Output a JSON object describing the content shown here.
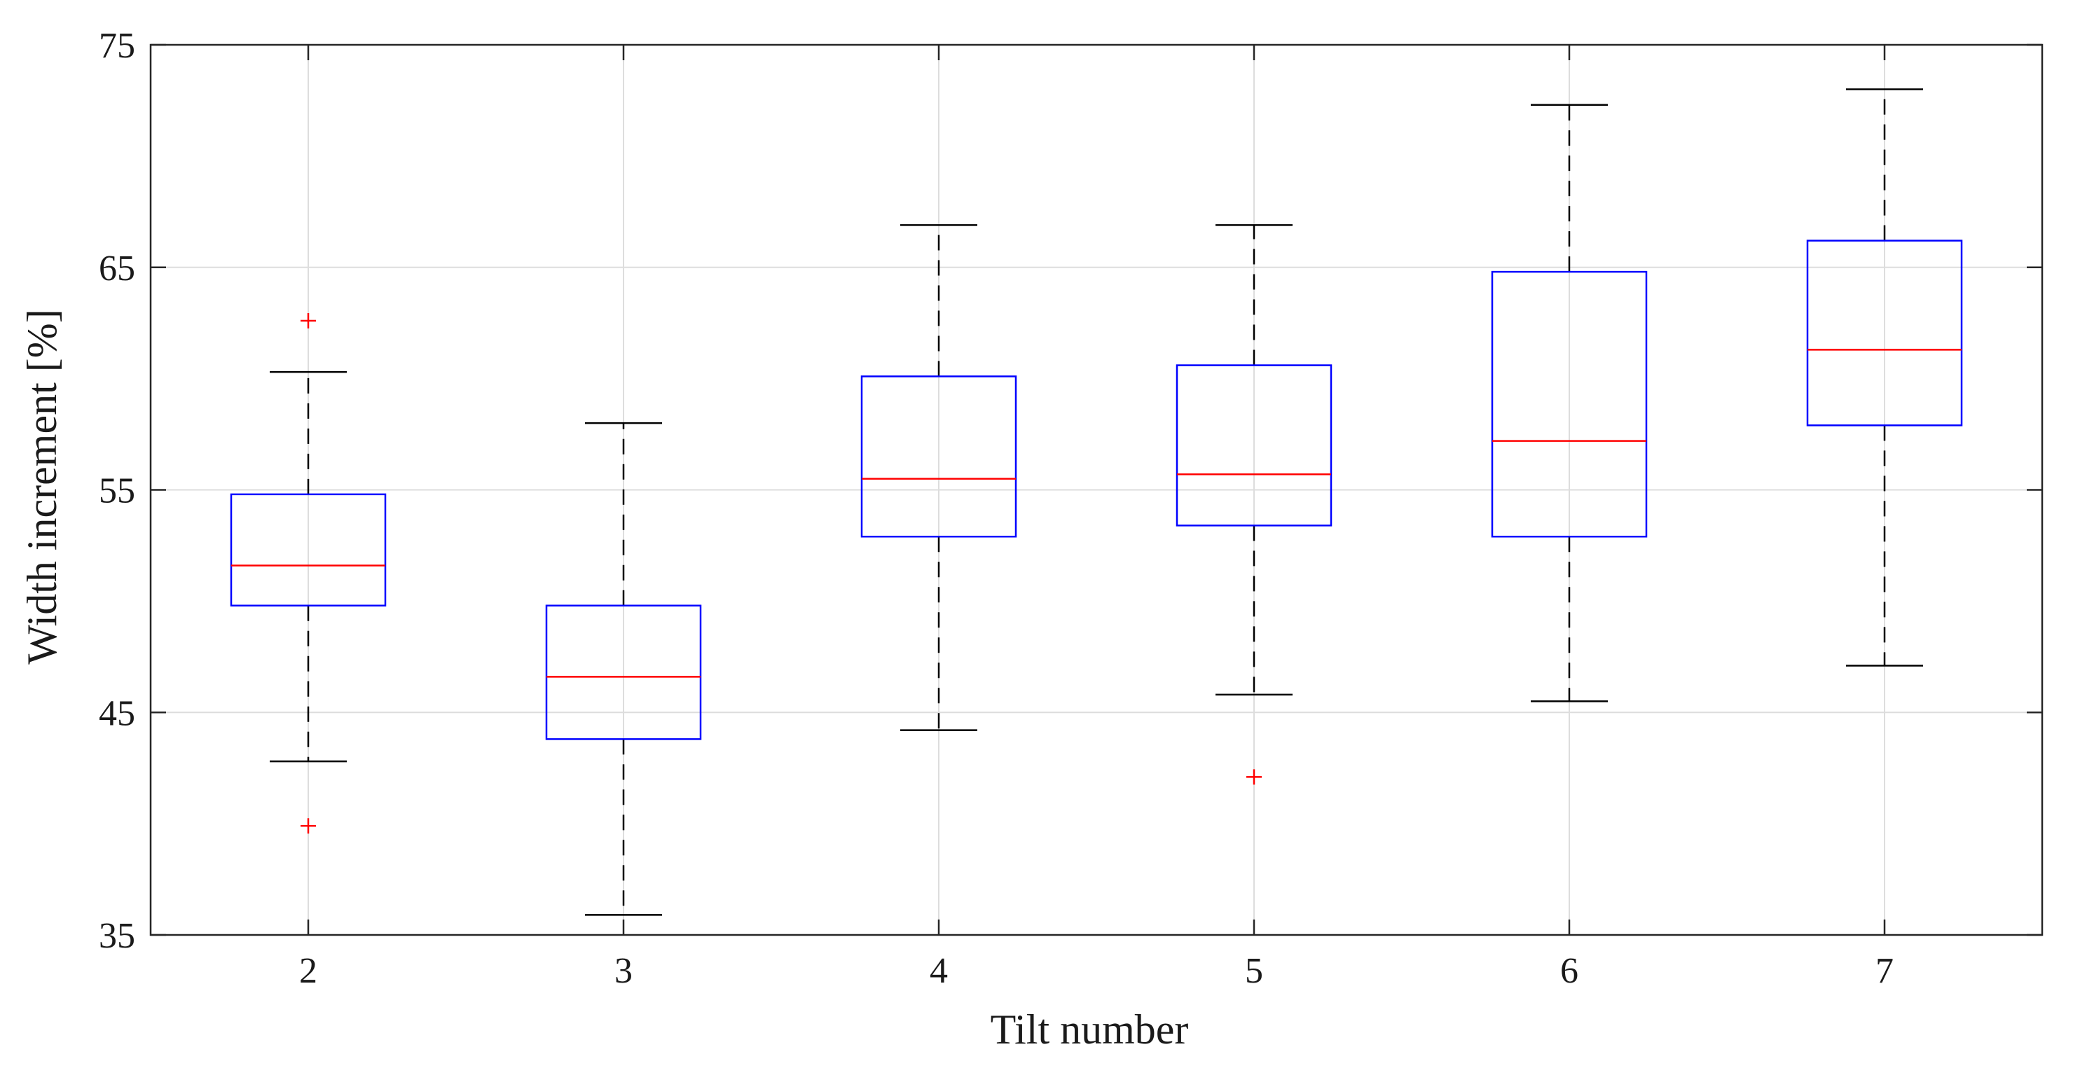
{
  "chart_data": {
    "type": "boxplot",
    "title": "",
    "xlabel": "Tilt number",
    "ylabel": "Width increment [%]",
    "categories": [
      "2",
      "3",
      "4",
      "5",
      "6",
      "7"
    ],
    "ylim": [
      35,
      75
    ],
    "yticks": [
      "35",
      "45",
      "55",
      "65",
      "75"
    ],
    "grid": true,
    "boxes": [
      {
        "category": "2",
        "whisker_low": 42.8,
        "q1": 49.8,
        "median": 51.6,
        "q3": 54.8,
        "whisker_high": 60.3,
        "outliers": [
          62.6,
          39.9
        ]
      },
      {
        "category": "3",
        "whisker_low": 35.9,
        "q1": 43.8,
        "median": 46.6,
        "q3": 49.8,
        "whisker_high": 58.0,
        "outliers": []
      },
      {
        "category": "4",
        "whisker_low": 44.2,
        "q1": 52.9,
        "median": 55.5,
        "q3": 60.1,
        "whisker_high": 66.9,
        "outliers": []
      },
      {
        "category": "5",
        "whisker_low": 45.8,
        "q1": 53.4,
        "median": 55.7,
        "q3": 60.6,
        "whisker_high": 66.9,
        "outliers": [
          42.1
        ]
      },
      {
        "category": "6",
        "whisker_low": 45.5,
        "q1": 52.9,
        "median": 57.2,
        "q3": 64.8,
        "whisker_high": 72.3,
        "outliers": []
      },
      {
        "category": "7",
        "whisker_low": 47.1,
        "q1": 57.9,
        "median": 61.3,
        "q3": 66.2,
        "whisker_high": 73.0,
        "outliers": []
      }
    ],
    "colors": {
      "box": "#0000ff",
      "median": "#ff0000",
      "whisker": "#000000",
      "outlier": "#ff0000",
      "grid": "#dddddd",
      "axis": "#262626"
    }
  }
}
